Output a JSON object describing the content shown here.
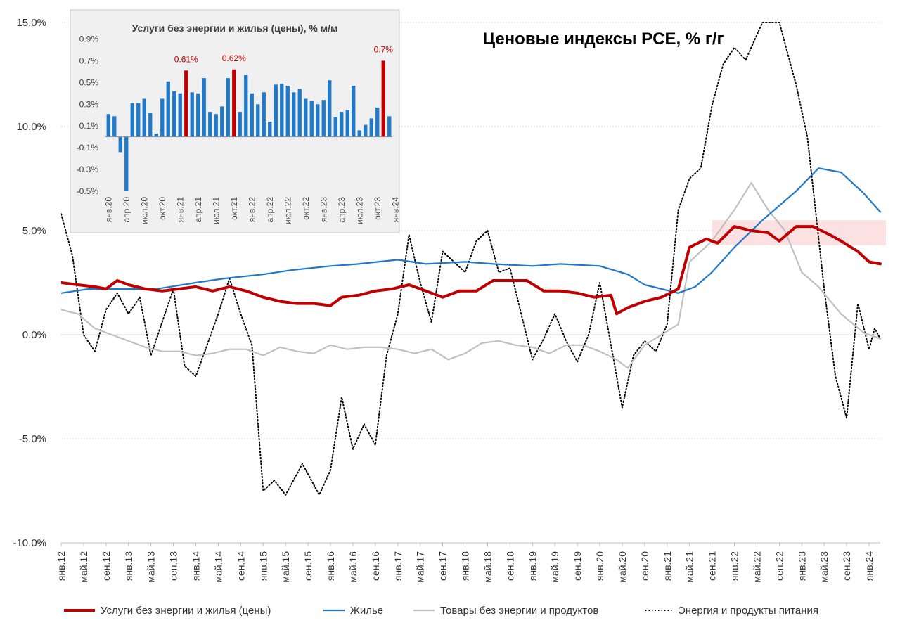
{
  "colors": {
    "services": "#c00000",
    "housing": "#1f78c8",
    "goods": "#c0c0c0",
    "energy_food": "#000000",
    "inset_bar": "#1f78c8",
    "inset_highlight": "#c00000",
    "inset_bg": "#f0f0f0",
    "band": "#fadcdc"
  },
  "chart_data": [
    {
      "type": "line",
      "title": "Ценовые индексы PCE, % г/г",
      "xlabel": "",
      "ylabel": "",
      "ylim": [
        -10,
        15
      ],
      "y_ticks": [
        "15.0%",
        "10.0%",
        "5.0%",
        "0.0%",
        "-5.0%",
        "-10.0%"
      ],
      "x_range": [
        "2012-01",
        "2024-03"
      ],
      "x_tick_labels": [
        "янв.12",
        "май.12",
        "сен.12",
        "янв.13",
        "май.13",
        "сен.13",
        "янв.14",
        "май.14",
        "сен.14",
        "янв.15",
        "май.15",
        "сен.15",
        "янв.16",
        "май.16",
        "сен.16",
        "янв.17",
        "май.17",
        "сен.17",
        "янв.18",
        "май.18",
        "сен.18",
        "янв.19",
        "май.19",
        "сен.19",
        "янв.20",
        "май.20",
        "сен.20",
        "янв.21",
        "май.21",
        "сен.21",
        "янв.22",
        "май.22",
        "сен.22",
        "янв.23",
        "май.23",
        "сен.23",
        "янв.24"
      ],
      "grid": true,
      "legend_position": "bottom",
      "highlight_band": {
        "x_from": "2021-09",
        "x_to": "2024-03",
        "y_from": 4.3,
        "y_to": 5.5
      },
      "series": [
        {
          "name": "Услуги без энергии и жилья (цены)",
          "color_key": "services",
          "style": "solid-thick",
          "points": [
            [
              "2012-01",
              2.5
            ],
            [
              "2012-04",
              2.4
            ],
            [
              "2012-07",
              2.3
            ],
            [
              "2012-09",
              2.2
            ],
            [
              "2012-11",
              2.6
            ],
            [
              "2013-01",
              2.4
            ],
            [
              "2013-04",
              2.2
            ],
            [
              "2013-07",
              2.1
            ],
            [
              "2013-10",
              2.2
            ],
            [
              "2014-01",
              2.3
            ],
            [
              "2014-04",
              2.1
            ],
            [
              "2014-07",
              2.3
            ],
            [
              "2014-10",
              2.1
            ],
            [
              "2015-01",
              1.8
            ],
            [
              "2015-04",
              1.6
            ],
            [
              "2015-07",
              1.5
            ],
            [
              "2015-10",
              1.5
            ],
            [
              "2016-01",
              1.4
            ],
            [
              "2016-03",
              1.8
            ],
            [
              "2016-06",
              1.9
            ],
            [
              "2016-09",
              2.1
            ],
            [
              "2016-12",
              2.2
            ],
            [
              "2017-03",
              2.4
            ],
            [
              "2017-06",
              2.1
            ],
            [
              "2017-09",
              1.8
            ],
            [
              "2017-12",
              2.1
            ],
            [
              "2018-03",
              2.1
            ],
            [
              "2018-06",
              2.6
            ],
            [
              "2018-09",
              2.6
            ],
            [
              "2018-12",
              2.6
            ],
            [
              "2019-03",
              2.1
            ],
            [
              "2019-06",
              2.1
            ],
            [
              "2019-09",
              2.0
            ],
            [
              "2019-12",
              1.8
            ],
            [
              "2020-03",
              1.9
            ],
            [
              "2020-04",
              1.0
            ],
            [
              "2020-06",
              1.3
            ],
            [
              "2020-09",
              1.6
            ],
            [
              "2020-12",
              1.8
            ],
            [
              "2021-03",
              2.2
            ],
            [
              "2021-05",
              4.2
            ],
            [
              "2021-08",
              4.6
            ],
            [
              "2021-10",
              4.4
            ],
            [
              "2022-01",
              5.2
            ],
            [
              "2022-04",
              5.0
            ],
            [
              "2022-07",
              4.9
            ],
            [
              "2022-09",
              4.5
            ],
            [
              "2022-12",
              5.2
            ],
            [
              "2023-03",
              5.2
            ],
            [
              "2023-06",
              4.8
            ],
            [
              "2023-08",
              4.5
            ],
            [
              "2023-11",
              4.0
            ],
            [
              "2024-01",
              3.5
            ],
            [
              "2024-03",
              3.4
            ]
          ]
        },
        {
          "name": "Жилье",
          "color_key": "housing",
          "style": "solid",
          "points": [
            [
              "2012-01",
              2.0
            ],
            [
              "2012-06",
              2.2
            ],
            [
              "2013-01",
              2.2
            ],
            [
              "2013-06",
              2.2
            ],
            [
              "2014-01",
              2.5
            ],
            [
              "2014-06",
              2.7
            ],
            [
              "2015-01",
              2.9
            ],
            [
              "2015-06",
              3.1
            ],
            [
              "2016-01",
              3.3
            ],
            [
              "2016-06",
              3.4
            ],
            [
              "2017-01",
              3.6
            ],
            [
              "2017-06",
              3.4
            ],
            [
              "2018-01",
              3.5
            ],
            [
              "2018-06",
              3.4
            ],
            [
              "2019-01",
              3.3
            ],
            [
              "2019-06",
              3.4
            ],
            [
              "2020-01",
              3.3
            ],
            [
              "2020-06",
              2.9
            ],
            [
              "2020-09",
              2.4
            ],
            [
              "2021-03",
              2.0
            ],
            [
              "2021-06",
              2.3
            ],
            [
              "2021-09",
              3.0
            ],
            [
              "2022-01",
              4.2
            ],
            [
              "2022-06",
              5.5
            ],
            [
              "2022-12",
              6.9
            ],
            [
              "2023-04",
              8.0
            ],
            [
              "2023-08",
              7.8
            ],
            [
              "2023-12",
              6.8
            ],
            [
              "2024-03",
              5.9
            ]
          ]
        },
        {
          "name": "Товары без энергии и продуктов",
          "color_key": "goods",
          "style": "solid",
          "points": [
            [
              "2012-01",
              1.2
            ],
            [
              "2012-04",
              1.0
            ],
            [
              "2012-07",
              0.3
            ],
            [
              "2012-10",
              0.0
            ],
            [
              "2013-01",
              -0.3
            ],
            [
              "2013-04",
              -0.6
            ],
            [
              "2013-07",
              -0.8
            ],
            [
              "2013-10",
              -0.8
            ],
            [
              "2014-01",
              -1.0
            ],
            [
              "2014-04",
              -0.9
            ],
            [
              "2014-07",
              -0.7
            ],
            [
              "2014-10",
              -0.7
            ],
            [
              "2015-01",
              -1.0
            ],
            [
              "2015-04",
              -0.6
            ],
            [
              "2015-07",
              -0.8
            ],
            [
              "2015-10",
              -0.9
            ],
            [
              "2016-01",
              -0.5
            ],
            [
              "2016-04",
              -0.7
            ],
            [
              "2016-07",
              -0.6
            ],
            [
              "2016-10",
              -0.6
            ],
            [
              "2017-01",
              -0.7
            ],
            [
              "2017-04",
              -0.9
            ],
            [
              "2017-07",
              -0.7
            ],
            [
              "2017-10",
              -1.2
            ],
            [
              "2018-01",
              -0.9
            ],
            [
              "2018-04",
              -0.4
            ],
            [
              "2018-07",
              -0.3
            ],
            [
              "2018-10",
              -0.5
            ],
            [
              "2019-01",
              -0.6
            ],
            [
              "2019-04",
              -0.9
            ],
            [
              "2019-07",
              -0.5
            ],
            [
              "2019-10",
              -0.5
            ],
            [
              "2020-01",
              -0.8
            ],
            [
              "2020-04",
              -1.2
            ],
            [
              "2020-06",
              -1.6
            ],
            [
              "2020-09",
              -0.5
            ],
            [
              "2020-12",
              0.0
            ],
            [
              "2021-03",
              0.5
            ],
            [
              "2021-05",
              3.5
            ],
            [
              "2021-09",
              4.5
            ],
            [
              "2022-01",
              6.0
            ],
            [
              "2022-04",
              7.3
            ],
            [
              "2022-07",
              6.0
            ],
            [
              "2022-10",
              5.0
            ],
            [
              "2023-01",
              3.0
            ],
            [
              "2023-04",
              2.3
            ],
            [
              "2023-08",
              1.0
            ],
            [
              "2023-12",
              0.1
            ],
            [
              "2024-03",
              -0.2
            ]
          ]
        },
        {
          "name": "Энергия и продукты питания",
          "color_key": "energy_food",
          "style": "dotted",
          "points": [
            [
              "2012-01",
              5.8
            ],
            [
              "2012-03",
              3.8
            ],
            [
              "2012-05",
              0.0
            ],
            [
              "2012-07",
              -0.8
            ],
            [
              "2012-09",
              1.2
            ],
            [
              "2012-11",
              2.0
            ],
            [
              "2013-01",
              1.0
            ],
            [
              "2013-03",
              1.8
            ],
            [
              "2013-05",
              -1.0
            ],
            [
              "2013-07",
              0.6
            ],
            [
              "2013-09",
              2.2
            ],
            [
              "2013-11",
              -1.5
            ],
            [
              "2014-01",
              -2.0
            ],
            [
              "2014-03",
              -0.5
            ],
            [
              "2014-05",
              1.0
            ],
            [
              "2014-07",
              2.7
            ],
            [
              "2014-09",
              1.0
            ],
            [
              "2014-11",
              -0.5
            ],
            [
              "2015-01",
              -7.5
            ],
            [
              "2015-03",
              -7.0
            ],
            [
              "2015-05",
              -7.7
            ],
            [
              "2015-08",
              -6.2
            ],
            [
              "2015-11",
              -7.7
            ],
            [
              "2016-01",
              -6.5
            ],
            [
              "2016-03",
              -3.0
            ],
            [
              "2016-05",
              -5.5
            ],
            [
              "2016-07",
              -4.3
            ],
            [
              "2016-09",
              -5.3
            ],
            [
              "2016-11",
              -1.0
            ],
            [
              "2017-01",
              1.0
            ],
            [
              "2017-03",
              4.8
            ],
            [
              "2017-05",
              2.5
            ],
            [
              "2017-07",
              0.6
            ],
            [
              "2017-09",
              4.0
            ],
            [
              "2017-11",
              3.5
            ],
            [
              "2018-01",
              3.0
            ],
            [
              "2018-03",
              4.5
            ],
            [
              "2018-05",
              5.0
            ],
            [
              "2018-07",
              3.0
            ],
            [
              "2018-09",
              3.2
            ],
            [
              "2018-11",
              1.0
            ],
            [
              "2019-01",
              -1.2
            ],
            [
              "2019-03",
              -0.2
            ],
            [
              "2019-05",
              1.0
            ],
            [
              "2019-07",
              -0.3
            ],
            [
              "2019-09",
              -1.3
            ],
            [
              "2019-11",
              0.0
            ],
            [
              "2020-01",
              2.5
            ],
            [
              "2020-03",
              -0.5
            ],
            [
              "2020-05",
              -3.5
            ],
            [
              "2020-07",
              -1.0
            ],
            [
              "2020-09",
              -0.3
            ],
            [
              "2020-11",
              -0.8
            ],
            [
              "2021-01",
              0.5
            ],
            [
              "2021-03",
              6.0
            ],
            [
              "2021-05",
              7.5
            ],
            [
              "2021-07",
              8.0
            ],
            [
              "2021-09",
              11.0
            ],
            [
              "2021-11",
              13.0
            ],
            [
              "2022-01",
              13.8
            ],
            [
              "2022-03",
              13.2
            ],
            [
              "2022-06",
              15.0
            ],
            [
              "2022-09",
              15.0
            ],
            [
              "2022-12",
              12.0
            ],
            [
              "2023-02",
              9.5
            ],
            [
              "2023-05",
              2.2
            ],
            [
              "2023-07",
              -2.0
            ],
            [
              "2023-09",
              -4.0
            ],
            [
              "2023-11",
              1.5
            ],
            [
              "2024-01",
              -0.7
            ],
            [
              "2024-02",
              0.3
            ],
            [
              "2024-03",
              -0.2
            ]
          ]
        }
      ]
    },
    {
      "type": "bar",
      "title": "Услуги без энергии и жилья (цены), % м/м",
      "ylim": [
        -0.5,
        1.0
      ],
      "y_ticks": [
        "0.9%",
        "0.7%",
        "0.5%",
        "0.3%",
        "0.1%",
        "-0.1%",
        "-0.3%",
        "-0.5%"
      ],
      "x_tick_labels": [
        "янв.20",
        "апр.20",
        "июл.20",
        "окт.20",
        "янв.21",
        "апр.21",
        "июл.21",
        "окт.21",
        "янв.22",
        "апр.22",
        "июл.22",
        "окт.22",
        "янв.23",
        "апр.23",
        "июл.23",
        "окт.23",
        "янв.24"
      ],
      "annotations": [
        "0.61%",
        "0.62%",
        "0.7%"
      ],
      "values": [
        0.21,
        0.19,
        -0.14,
        -0.5,
        0.31,
        0.31,
        0.35,
        0.22,
        0.03,
        0.35,
        0.51,
        0.42,
        0.4,
        0.61,
        0.41,
        0.4,
        0.54,
        0.23,
        0.21,
        0.28,
        0.54,
        0.62,
        0.23,
        0.57,
        0.4,
        0.3,
        0.41,
        0.14,
        0.48,
        0.49,
        0.47,
        0.41,
        0.44,
        0.35,
        0.33,
        0.3,
        0.34,
        0.52,
        0.18,
        0.23,
        0.25,
        0.47,
        0.06,
        0.11,
        0.17,
        0.27,
        0.7,
        0.19
      ],
      "highlight_indices": [
        13,
        21,
        46
      ]
    }
  ]
}
